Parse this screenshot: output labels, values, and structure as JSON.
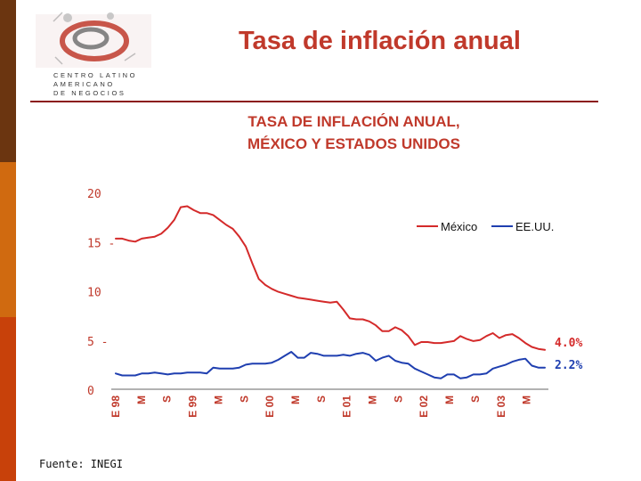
{
  "slide": {
    "title": "Tasa de inflación anual",
    "source": "Fuente: INEGI",
    "logo": {
      "lines": [
        "CENTRO LATINO",
        "AMERICANO",
        "DE NEGOCIOS"
      ]
    },
    "colors": {
      "title": "#c0392b",
      "sidebar": [
        "#6b3510",
        "#d06a10",
        "#c8410a"
      ],
      "rule": "#8b1a1a"
    }
  },
  "chart_data": {
    "type": "line",
    "title": [
      "TASA DE INFLACIÓN ANUAL,",
      "MÉXICO Y ESTADOS UNIDOS"
    ],
    "ylim": [
      0,
      20
    ],
    "yticks": [
      0,
      5,
      10,
      15,
      20
    ],
    "xlim": [
      0,
      66
    ],
    "tick_labels": [
      "E 98",
      "M",
      "S",
      "E 99",
      "M",
      "S",
      "E 00",
      "M",
      "S",
      "E 01",
      "M",
      "S",
      "E 02",
      "M",
      "S",
      "E 03",
      "M"
    ],
    "grid": false,
    "legend": "top-right",
    "series": [
      {
        "name": "México",
        "color": "#d42a2a",
        "end_label": "4.0%",
        "values": [
          15.3,
          15.3,
          15.1,
          15.0,
          15.3,
          15.4,
          15.5,
          15.8,
          16.4,
          17.2,
          18.5,
          18.6,
          18.2,
          17.9,
          17.9,
          17.7,
          17.2,
          16.7,
          16.3,
          15.5,
          14.5,
          12.8,
          11.2,
          10.6,
          10.2,
          9.9,
          9.7,
          9.5,
          9.3,
          9.2,
          9.1,
          9.0,
          8.9,
          8.8,
          8.9,
          8.1,
          7.2,
          7.1,
          7.1,
          6.9,
          6.5,
          5.9,
          5.9,
          6.3,
          6.0,
          5.4,
          4.5,
          4.8,
          4.8,
          4.7,
          4.7,
          4.8,
          4.9,
          5.4,
          5.1,
          4.9,
          5.0,
          5.4,
          5.7,
          5.2,
          5.5,
          5.6,
          5.2,
          4.7,
          4.3,
          4.1,
          4.0
        ]
      },
      {
        "name": "EE.UU.",
        "color": "#1f3fb0",
        "end_label": "2.2%",
        "values": [
          1.6,
          1.4,
          1.4,
          1.4,
          1.6,
          1.6,
          1.7,
          1.6,
          1.5,
          1.6,
          1.6,
          1.7,
          1.7,
          1.7,
          1.6,
          2.2,
          2.1,
          2.1,
          2.1,
          2.2,
          2.5,
          2.6,
          2.6,
          2.6,
          2.7,
          3.0,
          3.4,
          3.8,
          3.2,
          3.2,
          3.7,
          3.6,
          3.4,
          3.4,
          3.4,
          3.5,
          3.4,
          3.6,
          3.7,
          3.5,
          2.9,
          3.2,
          3.4,
          2.9,
          2.7,
          2.6,
          2.1,
          1.8,
          1.5,
          1.2,
          1.1,
          1.5,
          1.5,
          1.1,
          1.2,
          1.5,
          1.5,
          1.6,
          2.1,
          2.3,
          2.5,
          2.8,
          3.0,
          3.1,
          2.4,
          2.2,
          2.2
        ]
      }
    ]
  }
}
